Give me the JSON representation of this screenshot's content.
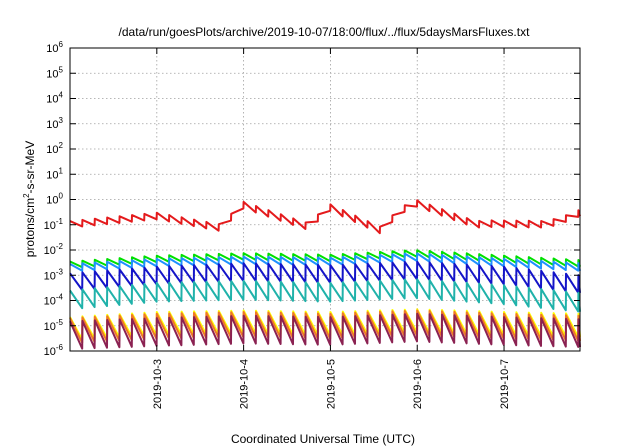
{
  "chart_data": {
    "type": "line",
    "title": "/data/run/goesPlots/archive/2019-10-07/18:00/flux/../flux/5daysMarsFluxes.txt",
    "xlabel": "Coordinated Universal Time (UTC)",
    "ylabel_parts": {
      "base": "protons/cm",
      "sup": "2",
      "rest": "-s-sr-MeV"
    },
    "yscale": "log",
    "ylim": [
      1e-06,
      1000000.0
    ],
    "y_ticks": [
      {
        "base": "10",
        "exp": "-6",
        "value": 1e-06
      },
      {
        "base": "10",
        "exp": "-5",
        "value": 1e-05
      },
      {
        "base": "10",
        "exp": "-4",
        "value": 0.0001
      },
      {
        "base": "10",
        "exp": "-3",
        "value": 0.001
      },
      {
        "base": "10",
        "exp": "-2",
        "value": 0.01
      },
      {
        "base": "10",
        "exp": "-1",
        "value": 0.1
      },
      {
        "base": "10",
        "exp": "0",
        "value": 1.0
      },
      {
        "base": "10",
        "exp": "1",
        "value": 10.0
      },
      {
        "base": "10",
        "exp": "2",
        "value": 100.0
      },
      {
        "base": "10",
        "exp": "3",
        "value": 1000.0
      },
      {
        "base": "10",
        "exp": "4",
        "value": 10000.0
      },
      {
        "base": "10",
        "exp": "5",
        "value": 100000.0
      },
      {
        "base": "10",
        "exp": "6",
        "value": 1000000.0
      }
    ],
    "xlim": [
      "2019-10-02T00:00",
      "2019-10-07T21:00"
    ],
    "x_ticks": [
      "2019-10-3",
      "2019-10-4",
      "2019-10-5",
      "2019-10-6",
      "2019-10-7"
    ],
    "grid": true,
    "series_style": {
      "sawtooth_per_day": 7
    },
    "series": [
      {
        "color": "#e41a1c",
        "base_points": [
          [
            "2019-10-02T00:00",
            0.14
          ],
          [
            "2019-10-03T00:00",
            0.3
          ],
          [
            "2019-10-03T18:00",
            0.1
          ],
          [
            "2019-10-03T23:30",
            0.85
          ],
          [
            "2019-10-04T19:00",
            0.1
          ],
          [
            "2019-10-04T22:30",
            0.8
          ],
          [
            "2019-10-05T14:00",
            0.08
          ],
          [
            "2019-10-05T19:00",
            0.45
          ],
          [
            "2019-10-05T23:30",
            1.0
          ],
          [
            "2019-10-06T16:00",
            0.14
          ],
          [
            "2019-10-06T21:00",
            0.15
          ],
          [
            "2019-10-07T12:00",
            0.14
          ],
          [
            "2019-10-07T18:00",
            0.26
          ],
          [
            "2019-10-07T21:00",
            0.4
          ]
        ],
        "amp_low": 0.55
      },
      {
        "color": "#00e000",
        "base_points": [
          [
            "2019-10-02T00:00",
            0.0035
          ],
          [
            "2019-10-03T00:00",
            0.006
          ],
          [
            "2019-10-04T00:00",
            0.0075
          ],
          [
            "2019-10-05T00:00",
            0.0065
          ],
          [
            "2019-10-05T23:00",
            0.01
          ],
          [
            "2019-10-07T00:00",
            0.006
          ],
          [
            "2019-10-07T21:00",
            0.004
          ]
        ],
        "amp_low": 0.55
      },
      {
        "color": "#1e90ff",
        "base_points": [
          [
            "2019-10-02T00:00",
            0.0028
          ],
          [
            "2019-10-03T00:00",
            0.0045
          ],
          [
            "2019-10-04T00:00",
            0.0055
          ],
          [
            "2019-10-05T00:00",
            0.005
          ],
          [
            "2019-10-05T23:00",
            0.0075
          ],
          [
            "2019-10-07T00:00",
            0.0045
          ],
          [
            "2019-10-07T21:00",
            0.003
          ]
        ],
        "amp_low": 0.5
      },
      {
        "color": "#1414c8",
        "base_points": [
          [
            "2019-10-02T00:00",
            0.0012
          ],
          [
            "2019-10-03T00:00",
            0.0022
          ],
          [
            "2019-10-04T00:00",
            0.003
          ],
          [
            "2019-10-05T00:00",
            0.0025
          ],
          [
            "2019-10-05T23:00",
            0.0035
          ],
          [
            "2019-10-07T00:00",
            0.0022
          ],
          [
            "2019-10-07T21:00",
            0.001
          ]
        ],
        "amp_low": 0.2
      },
      {
        "color": "#20b2aa",
        "base_points": [
          [
            "2019-10-02T00:00",
            0.00025
          ],
          [
            "2019-10-03T00:00",
            0.0005
          ],
          [
            "2019-10-04T00:00",
            0.0006
          ],
          [
            "2019-10-05T00:00",
            0.0005
          ],
          [
            "2019-10-05T23:00",
            0.0007
          ],
          [
            "2019-10-07T00:00",
            0.0004
          ],
          [
            "2019-10-07T21:00",
            0.0002
          ]
        ],
        "amp_low": 0.18
      },
      {
        "color": "#ffff00",
        "base_points": [
          [
            "2019-10-02T00:00",
            2.2e-05
          ],
          [
            "2019-10-03T00:00",
            3.5e-05
          ],
          [
            "2019-10-04T00:00",
            4e-05
          ],
          [
            "2019-10-05T00:00",
            3.5e-05
          ],
          [
            "2019-10-06T00:00",
            4.5e-05
          ],
          [
            "2019-10-07T00:00",
            3.5e-05
          ],
          [
            "2019-10-07T21:00",
            3e-05
          ]
        ],
        "amp_low": 0.12
      },
      {
        "color": "#f07828",
        "base_points": [
          [
            "2019-10-02T00:00",
            2e-05
          ],
          [
            "2019-10-03T00:00",
            3e-05
          ],
          [
            "2019-10-04T00:00",
            3.5e-05
          ],
          [
            "2019-10-05T00:00",
            3e-05
          ],
          [
            "2019-10-06T00:00",
            4e-05
          ],
          [
            "2019-10-07T00:00",
            3e-05
          ],
          [
            "2019-10-07T21:00",
            2.5e-05
          ]
        ],
        "amp_low": 0.1
      },
      {
        "color": "#8b2252",
        "base_points": [
          [
            "2019-10-02T00:00",
            1.5e-05
          ],
          [
            "2019-10-03T00:00",
            2e-05
          ],
          [
            "2019-10-04T00:00",
            2.5e-05
          ],
          [
            "2019-10-05T00:00",
            2.2e-05
          ],
          [
            "2019-10-06T00:00",
            3e-05
          ],
          [
            "2019-10-07T00:00",
            2.2e-05
          ],
          [
            "2019-10-07T21:00",
            1.8e-05
          ]
        ],
        "amp_low": 0.08
      }
    ]
  }
}
